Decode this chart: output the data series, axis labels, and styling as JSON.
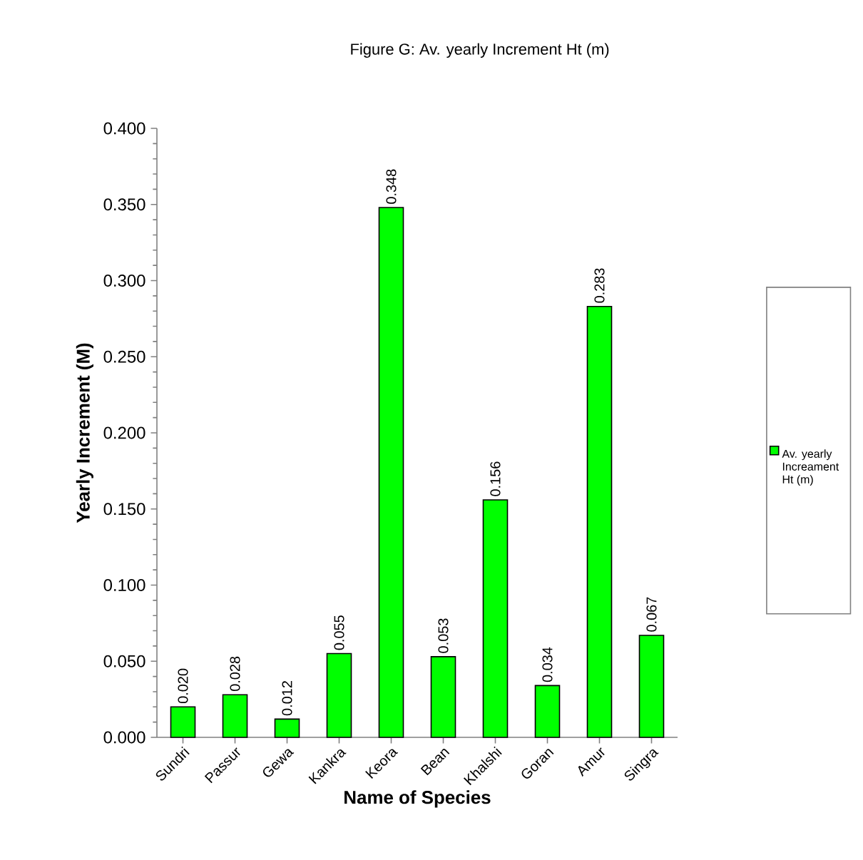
{
  "chart_data": {
    "type": "bar",
    "title": "Figure G: Av. yearly Increment Ht (m)",
    "xlabel": "Name of Species",
    "ylabel": "Yearly Increment (M)",
    "categories": [
      "Sundri",
      "Passur",
      "Gewa",
      "Kankra",
      "Keora",
      "Bean",
      "Khalshi",
      "Goran",
      "Amur",
      "Singra"
    ],
    "series": [
      {
        "name": "Av. yearly Increament Ht (m)",
        "color": "#00ff00",
        "values": [
          0.02,
          0.028,
          0.012,
          0.055,
          0.348,
          0.053,
          0.156,
          0.034,
          0.283,
          0.067
        ],
        "value_labels": [
          "0.020",
          "0.028",
          "0.012",
          "0.055",
          "0.348",
          "0.053",
          "0.156",
          "0.034",
          "0.283",
          "0.067"
        ]
      }
    ],
    "ylim": [
      0,
      0.4
    ],
    "yticks": [
      {
        "value": 0,
        "label": "0.000"
      },
      {
        "value": 0.05,
        "label": "0.050"
      },
      {
        "value": 0.1,
        "label": "0.100"
      },
      {
        "value": 0.15,
        "label": "0.150"
      },
      {
        "value": 0.2,
        "label": "0.200"
      },
      {
        "value": 0.25,
        "label": "0.250"
      },
      {
        "value": 0.3,
        "label": "0.300"
      },
      {
        "value": 0.35,
        "label": "0.350"
      },
      {
        "value": 0.4,
        "label": "0.400"
      }
    ],
    "grid": false,
    "legend": "right"
  }
}
